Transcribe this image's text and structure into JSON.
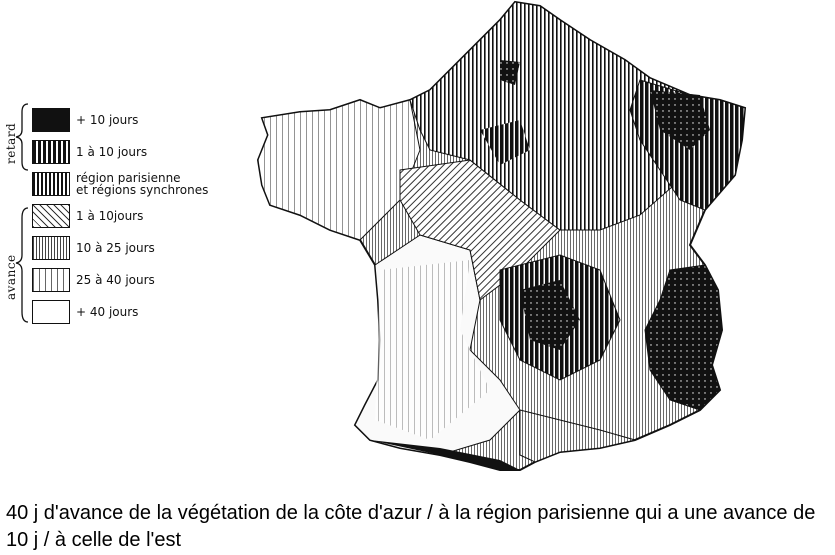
{
  "legend": {
    "groups": {
      "retard": "retard",
      "avance": "avance"
    },
    "items": [
      {
        "label": "+ 10 jours",
        "pattern": "black-dotted"
      },
      {
        "label": "1 à 10 jours",
        "pattern": "black-vertical"
      },
      {
        "label": "région parisienne\net régions synchrones",
        "pattern": "vertical-stripes"
      },
      {
        "label": "1 à 10jours",
        "pattern": "diagonal"
      },
      {
        "label": "10 à 25 jours",
        "pattern": "fine-vertical"
      },
      {
        "label": "25 à 40 jours",
        "pattern": "sparse-vertical"
      },
      {
        "label": "+ 40 jours",
        "pattern": "blank"
      }
    ]
  },
  "caption": "40 j d'avance de la végétation de la côte d'azur / à la région parisienne qui a une avance de 10 j / à celle de l'est",
  "colors": {
    "ink": "#111111",
    "paper": "#ffffff"
  }
}
